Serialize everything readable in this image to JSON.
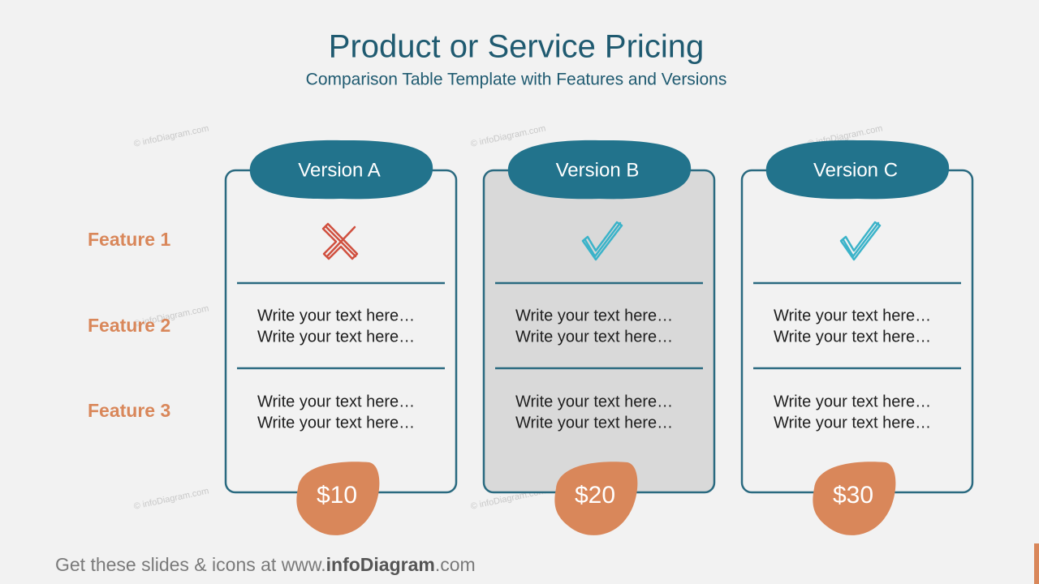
{
  "header": {
    "title": "Product or Service Pricing",
    "subtitle": "Comparison Table Template with Features and Versions"
  },
  "features": [
    "Feature 1",
    "Feature 2",
    "Feature 3"
  ],
  "versions": [
    {
      "name": "Version A",
      "price": "$10",
      "rows": [
        [
          "Write your text here…",
          "Write your text here…"
        ],
        [
          "Write your text here…",
          "Write your text here…"
        ]
      ]
    },
    {
      "name": "Version B",
      "price": "$20",
      "rows": [
        [
          "Write your text here…",
          "Write your text here…"
        ],
        [
          "Write your text here…",
          "Write your text here…"
        ]
      ]
    },
    {
      "name": "Version C",
      "price": "$30",
      "rows": [
        [
          "Write your text here…",
          "Write your text here…"
        ],
        [
          "Write your text here…",
          "Write your text here…"
        ]
      ]
    }
  ],
  "watermark": "© infoDiagram.com",
  "footer": [
    "Get these slides & icons at www.",
    "infoDiagram",
    ".com"
  ]
}
